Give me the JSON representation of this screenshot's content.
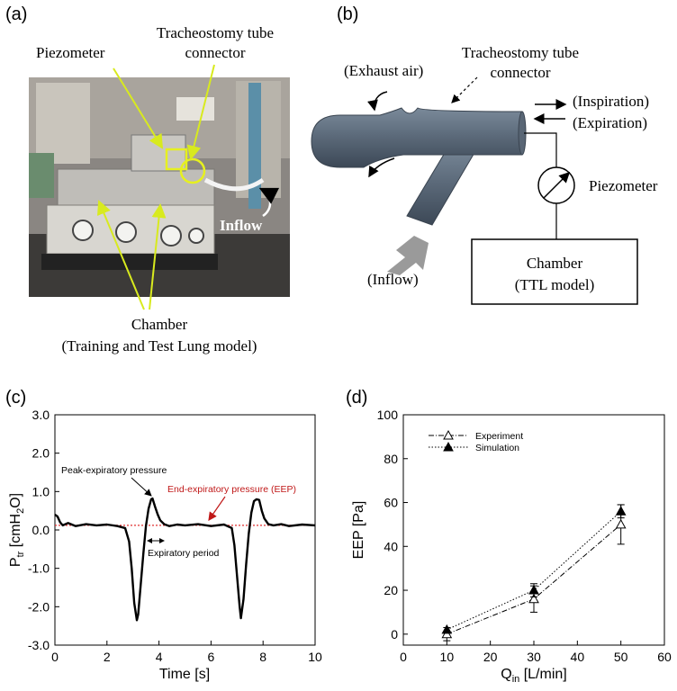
{
  "panels": {
    "a": {
      "label": "(a)",
      "annotations": {
        "piezometer": "Piezometer",
        "tube_connector_line1": "Tracheostomy tube",
        "tube_connector_line2": "connector",
        "inflow": "Inflow",
        "chamber_line1": "Chamber",
        "chamber_line2": "(Training and Test Lung model)"
      }
    },
    "b": {
      "label": "(b)",
      "exhaust": "(Exhaust air)",
      "tube_connector_line1": "Tracheostomy tube",
      "tube_connector_line2": "connector",
      "inspiration": "(Inspiration)",
      "expiration": "(Expiration)",
      "piezometer": "Piezometer",
      "inflow": "(Inflow)",
      "chamber_line1": "Chamber",
      "chamber_line2": "(TTL model)"
    },
    "c": {
      "label": "(c)",
      "annotation_peak": "Peak-expiratory pressure",
      "annotation_eep": "End-expiratory pressure (EEP)",
      "annotation_period": "Expiratory period"
    },
    "d": {
      "label": "(d)"
    }
  },
  "chart_data": [
    {
      "id": "c",
      "type": "line",
      "xlabel": "Time [s]",
      "ylabel": "P_tr [cmH2O]",
      "xlim": [
        0,
        10
      ],
      "ylim": [
        -3,
        3
      ],
      "xticks": [
        0,
        2,
        4,
        6,
        8,
        10
      ],
      "yticks": [
        -3.0,
        -2.0,
        -1.0,
        0.0,
        1.0,
        2.0,
        3.0
      ],
      "ytick_labels": [
        "-3.0",
        "-2.0",
        "-1.0",
        "0.0",
        "1.0",
        "2.0",
        "3.0"
      ],
      "reference_line": {
        "y": 0.12,
        "color": "#e03030",
        "style": "dotted"
      },
      "series": [
        {
          "color": "#000000",
          "x": [
            0,
            0.1,
            0.2,
            0.3,
            0.5,
            0.8,
            1.2,
            1.6,
            2.0,
            2.4,
            2.7,
            2.85,
            2.95,
            3.05,
            3.15,
            3.2,
            3.3,
            3.4,
            3.5,
            3.6,
            3.7,
            3.75,
            3.85,
            3.95,
            4.05,
            4.2,
            4.4,
            4.7,
            5.0,
            5.5,
            6.0,
            6.5,
            6.8,
            6.9,
            7.0,
            7.1,
            7.15,
            7.25,
            7.35,
            7.45,
            7.55,
            7.65,
            7.75,
            7.85,
            7.95,
            8.05,
            8.2,
            8.4,
            8.7,
            9.0,
            9.5,
            10.0
          ],
          "y": [
            0.4,
            0.35,
            0.2,
            0.12,
            0.18,
            0.1,
            0.15,
            0.12,
            0.14,
            0.1,
            0.05,
            -0.3,
            -1.0,
            -1.9,
            -2.35,
            -2.2,
            -1.4,
            -0.6,
            0.1,
            0.55,
            0.8,
            0.82,
            0.6,
            0.4,
            0.25,
            0.15,
            0.1,
            0.14,
            0.12,
            0.15,
            0.1,
            0.14,
            0.05,
            -0.4,
            -1.2,
            -2.0,
            -2.3,
            -1.8,
            -0.9,
            -0.1,
            0.45,
            0.75,
            0.8,
            0.78,
            0.5,
            0.3,
            0.15,
            0.12,
            0.15,
            0.1,
            0.14,
            0.12
          ]
        }
      ]
    },
    {
      "id": "d",
      "type": "scatter",
      "xlabel": "Q_in [L/min]",
      "ylabel": "EEP [Pa]",
      "xlim": [
        0,
        60
      ],
      "ylim": [
        -5,
        100
      ],
      "xticks": [
        0,
        10,
        20,
        30,
        40,
        50,
        60
      ],
      "yticks": [
        0,
        20,
        40,
        60,
        80,
        100
      ],
      "legend_position": "top-left",
      "series": [
        {
          "name": "Experiment",
          "marker": "open-triangle",
          "line": "dash-dot",
          "x": [
            10,
            30,
            50
          ],
          "y": [
            0,
            16,
            50
          ],
          "err": [
            3,
            6,
            9
          ]
        },
        {
          "name": "Simulation",
          "marker": "filled-triangle",
          "line": "dotted",
          "x": [
            10,
            30,
            50
          ],
          "y": [
            2,
            20,
            56
          ],
          "err": [
            0,
            3,
            3
          ]
        }
      ]
    }
  ]
}
